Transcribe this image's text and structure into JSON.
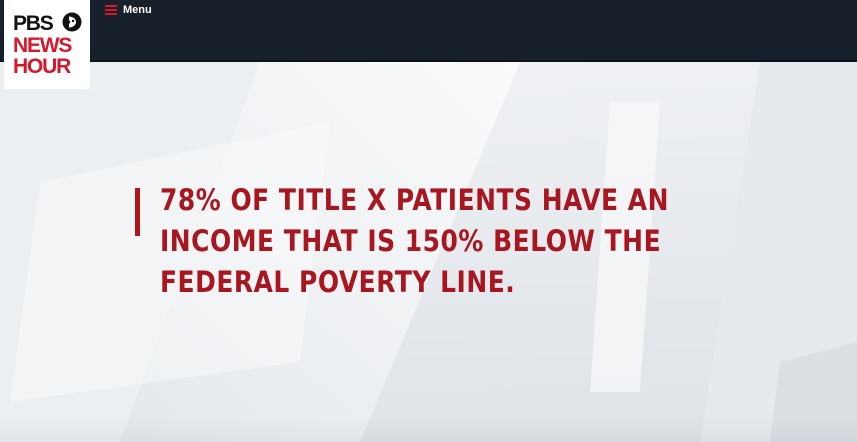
{
  "header": {
    "logo": {
      "line1": "PBS",
      "line2": "NEWS",
      "line3": "HOUR",
      "icon": "pbs-head-icon"
    },
    "menu": {
      "icon": "hamburger-icon",
      "label": "Menu"
    }
  },
  "slide": {
    "headline": "78% OF TITLE X PATIENTS HAVE AN INCOME THAT IS 150% BELOW THE FEDERAL POVERTY LINE."
  },
  "colors": {
    "nav_bg": "#17202b",
    "brand_red": "#d7182a",
    "headline_red": "#a8161f",
    "background": "#f4f5f7"
  }
}
